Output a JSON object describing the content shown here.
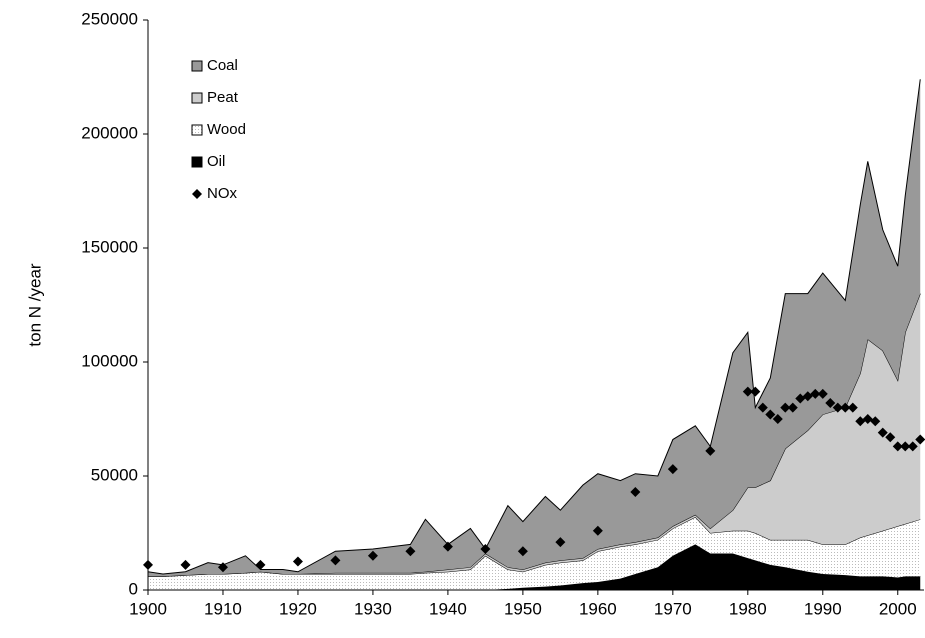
{
  "chart_data": {
    "type": "stacked_area",
    "ylabel": "ton N /year",
    "x": [
      1900,
      1902,
      1905,
      1908,
      1910,
      1913,
      1915,
      1918,
      1920,
      1925,
      1930,
      1935,
      1937,
      1940,
      1943,
      1945,
      1948,
      1950,
      1953,
      1955,
      1958,
      1960,
      1963,
      1965,
      1968,
      1970,
      1973,
      1975,
      1978,
      1980,
      1981,
      1983,
      1985,
      1988,
      1990,
      1993,
      1995,
      1996,
      1998,
      2000,
      2001,
      2003
    ],
    "series": [
      {
        "name": "Oil",
        "color": "#000000",
        "values": [
          0,
          0,
          0,
          0,
          0,
          0,
          0,
          0,
          0,
          0,
          0,
          0,
          0,
          0,
          0,
          0,
          500,
          1000,
          1500,
          2000,
          3000,
          3500,
          5000,
          7000,
          10000,
          15000,
          20000,
          16000,
          16000,
          14000,
          13000,
          11000,
          10000,
          8000,
          7000,
          6500,
          6000,
          6000,
          6000,
          5500,
          6000,
          6000
        ]
      },
      {
        "name": "Wood",
        "color": "#ffffff",
        "values": [
          6000,
          6000,
          6500,
          7000,
          7000,
          7500,
          8000,
          7000,
          7000,
          7000,
          7000,
          7000,
          7500,
          8000,
          9000,
          15000,
          8500,
          7000,
          9500,
          10000,
          10000,
          13500,
          14000,
          13000,
          12000,
          12000,
          12000,
          9000,
          10000,
          12000,
          12000,
          11000,
          12000,
          14000,
          13000,
          13500,
          17000,
          18000,
          20000,
          22500,
          23000,
          25000
        ]
      },
      {
        "name": "Peat",
        "color": "#cccccc",
        "values": [
          0,
          0,
          0,
          0,
          0,
          0,
          0,
          0,
          0,
          500,
          500,
          500,
          500,
          1000,
          1000,
          1000,
          1000,
          1000,
          1000,
          1000,
          1000,
          1000,
          1000,
          1000,
          1000,
          1000,
          1000,
          2000,
          9000,
          19000,
          20000,
          26000,
          40000,
          48000,
          57000,
          60000,
          72000,
          86000,
          79000,
          64000,
          84000,
          99000
        ]
      },
      {
        "name": "Coal",
        "color": "#999999",
        "values": [
          2000,
          1000,
          1500,
          5000,
          4000,
          7500,
          1000,
          2000,
          1000,
          9500,
          10500,
          12500,
          23000,
          11000,
          17000,
          2000,
          27000,
          21000,
          29000,
          22000,
          32000,
          33000,
          28000,
          30000,
          27000,
          38000,
          39000,
          36000,
          69000,
          68000,
          35000,
          45000,
          68000,
          60000,
          62000,
          47000,
          74000,
          78000,
          53000,
          50000,
          60000,
          94000
        ]
      }
    ],
    "nox": {
      "name": "NOx",
      "color": "#000000",
      "x": [
        1900,
        1905,
        1910,
        1915,
        1920,
        1925,
        1930,
        1935,
        1940,
        1945,
        1950,
        1955,
        1960,
        1965,
        1970,
        1975,
        1980,
        1981,
        1982,
        1983,
        1984,
        1985,
        1986,
        1987,
        1988,
        1989,
        1990,
        1991,
        1992,
        1993,
        1994,
        1995,
        1996,
        1997,
        1998,
        1999,
        2000,
        2001,
        2002,
        2003
      ],
      "values": [
        11000,
        11000,
        10000,
        11000,
        12500,
        13000,
        15000,
        17000,
        19000,
        18000,
        17000,
        21000,
        26000,
        43000,
        53000,
        61000,
        87000,
        87000,
        80000,
        77000,
        75000,
        80000,
        80000,
        84000,
        85000,
        86000,
        86000,
        82000,
        80000,
        80000,
        80000,
        74000,
        75000,
        74000,
        69000,
        67000,
        63000,
        63000,
        63000,
        66000
      ]
    },
    "legend_order": [
      3,
      2,
      1,
      0
    ],
    "xlim": [
      1900,
      2003.5
    ],
    "xticks": [
      1900,
      1910,
      1920,
      1930,
      1940,
      1950,
      1960,
      1970,
      1980,
      1990,
      2000
    ],
    "ylim": [
      0,
      250000
    ],
    "yticks": [
      0,
      50000,
      100000,
      150000,
      200000,
      250000
    ],
    "legend": "upper-left"
  }
}
